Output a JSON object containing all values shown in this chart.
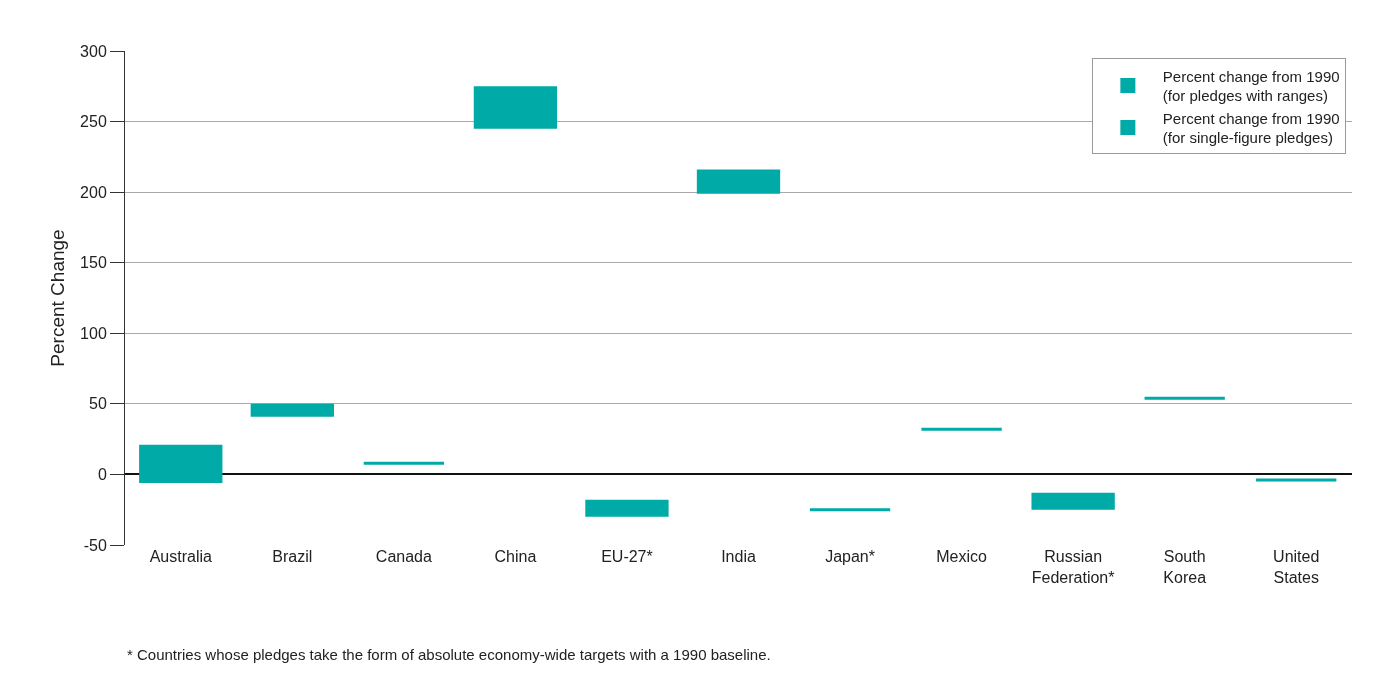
{
  "chart_data": {
    "type": "bar",
    "ylabel": "Percent Change",
    "categories": [
      "Australia",
      "Brazil",
      "Canada",
      "China",
      "EU-27*",
      "India",
      "Japan*",
      "Mexico",
      "Russian\nFederation*",
      "South\nKorea",
      "United\nStates"
    ],
    "series": [
      {
        "name": "Percent change from 1990\n(for pledges with ranges)",
        "color": "#00aaa6",
        "base": [
          -5,
          42,
          null,
          246,
          -29,
          200,
          null,
          null,
          -24,
          null,
          null
        ],
        "values": [
          25,
          7,
          null,
          28,
          10,
          15,
          null,
          null,
          10,
          null,
          null
        ]
      },
      {
        "name": "Percent change from 1990\n(for single-figure pledges)",
        "color": "#00aaa6",
        "base": [
          null,
          null,
          8,
          null,
          null,
          null,
          -25,
          32,
          null,
          54,
          -4
        ],
        "values": [
          null,
          null,
          0,
          null,
          null,
          null,
          0,
          0,
          null,
          0,
          0
        ]
      }
    ],
    "ylim": [
      -50,
      300
    ],
    "yticks": [
      -50,
      0,
      50,
      100,
      150,
      200,
      250,
      300
    ],
    "grid": "y",
    "legend": "top right",
    "annotations": [
      "* Countries whose pledges take the form of absolute economy-wide targets with a 1990 baseline."
    ]
  }
}
